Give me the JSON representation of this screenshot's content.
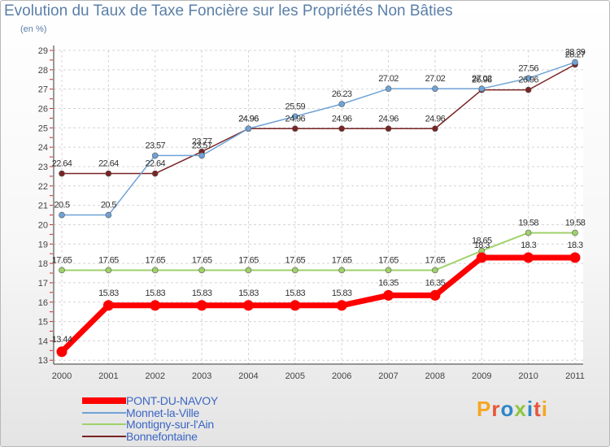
{
  "title": "Evolution du Taux de Taxe Foncière sur les Propriétés Non Bâties",
  "subtitle": "(en %)",
  "brand": {
    "text": "Proxiti",
    "colors": [
      "#f5a623",
      "#e8553a",
      "#2f86c8",
      "#8cc63f",
      "#2f86c8",
      "#e8553a",
      "#f5a623"
    ]
  },
  "chart_data": {
    "type": "line",
    "title": "Evolution du Taux de Taxe Foncière sur les Propriétés Non Bâties",
    "ylabel": "(en %)",
    "xlabel": "",
    "x": [
      "2000",
      "2001",
      "2002",
      "2003",
      "2004",
      "2005",
      "2006",
      "2007",
      "2008",
      "2009",
      "2010",
      "2011"
    ],
    "ylim": [
      12.8,
      29
    ],
    "yticks": [
      13,
      14,
      15,
      16,
      17,
      18,
      19,
      20,
      21,
      22,
      23,
      24,
      25,
      26,
      27,
      28,
      29
    ],
    "grid": true,
    "series": [
      {
        "name": "PONT-DU-NAVOY",
        "color": "#ff0000",
        "values": [
          13.44,
          15.83,
          15.83,
          15.83,
          15.83,
          15.83,
          15.83,
          16.35,
          16.35,
          18.3,
          18.3,
          18.3
        ],
        "labels": [
          "13.44",
          "15.83",
          "15.83",
          "15.83",
          "15.83",
          "15.83",
          "15.83",
          "16.35",
          "16.35",
          "18.3",
          "18.3",
          "18.3"
        ]
      },
      {
        "name": "Monnet-la-Ville",
        "color": "#6fa3d6",
        "values": [
          20.5,
          20.5,
          23.57,
          23.57,
          24.96,
          25.59,
          26.23,
          27.02,
          27.02,
          27.02,
          27.56,
          28.39
        ],
        "labels": [
          "20.5",
          "20.5",
          "23.57",
          "23.57",
          "24.96",
          "25.59",
          "26.23",
          "27.02",
          "27.02",
          "27.02",
          "27.56",
          "28.39"
        ]
      },
      {
        "name": "Montigny-sur-l'Ain",
        "color": "#9fd26a",
        "values": [
          17.65,
          17.65,
          17.65,
          17.65,
          17.65,
          17.65,
          17.65,
          17.65,
          17.65,
          18.65,
          19.58,
          19.58
        ],
        "labels": [
          "17.65",
          "17.65",
          "17.65",
          "17.65",
          "17.65",
          "17.65",
          "17.65",
          "17.65",
          "17.65",
          "18.65",
          "19.58",
          "19.58"
        ]
      },
      {
        "name": "Bonnefontaine",
        "color": "#7a2424",
        "values": [
          22.64,
          22.64,
          22.64,
          23.77,
          24.96,
          24.96,
          24.96,
          24.96,
          24.96,
          26.96,
          26.96,
          28.27
        ],
        "labels": [
          "22.64",
          "22.64",
          "22.64",
          "23.77",
          "24.96",
          "24.96",
          "24.96",
          "24.96",
          "24.96",
          "26.96",
          "26.96",
          "28.27"
        ]
      }
    ]
  }
}
